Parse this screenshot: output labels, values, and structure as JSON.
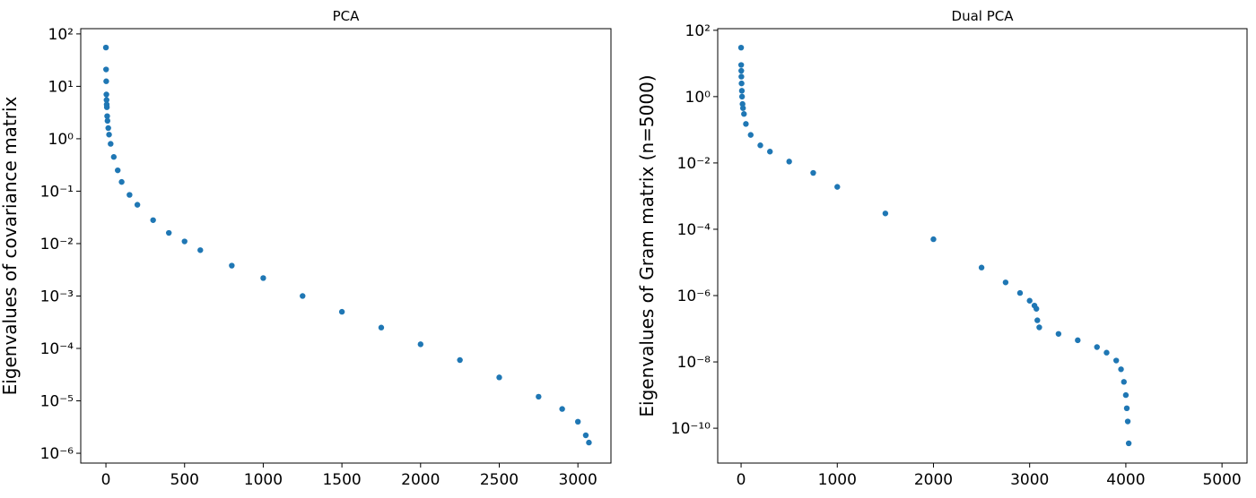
{
  "chart_data": [
    {
      "type": "scatter",
      "title": "PCA",
      "y_label": "Eigenvalues of covariance matrix",
      "yscale": "log",
      "color": "#1f77b4",
      "xlim": [
        -160,
        3210
      ],
      "ylim": [
        126,
        6.5e-07
      ],
      "xticks": [
        0,
        500,
        1000,
        1500,
        2000,
        2500,
        3000
      ],
      "yticks": [
        {
          "value": 100,
          "label": "10²"
        },
        {
          "value": 10,
          "label": "10¹"
        },
        {
          "value": 1,
          "label": "10⁰"
        },
        {
          "value": 0.1,
          "label": "10⁻¹"
        },
        {
          "value": 0.01,
          "label": "10⁻²"
        },
        {
          "value": 0.001,
          "label": "10⁻³"
        },
        {
          "value": 0.0001,
          "label": "10⁻⁴"
        },
        {
          "value": 1e-05,
          "label": "10⁻⁵"
        },
        {
          "value": 1e-06,
          "label": "10⁻⁶"
        }
      ],
      "x": [
        0,
        1,
        2,
        3,
        4,
        5,
        6,
        8,
        10,
        15,
        20,
        30,
        50,
        75,
        100,
        150,
        200,
        300,
        400,
        500,
        600,
        800,
        1000,
        1250,
        1500,
        1750,
        2000,
        2250,
        2500,
        2750,
        2900,
        3000,
        3050,
        3070
      ],
      "values": [
        55,
        21,
        12.5,
        7,
        5.5,
        4.5,
        4,
        2.7,
        2.2,
        1.6,
        1.2,
        0.8,
        0.45,
        0.25,
        0.15,
        0.085,
        0.055,
        0.028,
        0.016,
        0.011,
        0.0075,
        0.0038,
        0.0022,
        0.001,
        0.0005,
        0.00025,
        0.00012,
        6e-05,
        2.8e-05,
        1.2e-05,
        7e-06,
        4e-06,
        2.2e-06,
        1.6e-06
      ]
    },
    {
      "type": "scatter",
      "title": "Dual PCA",
      "y_label": "Eigenvalues of Gram matrix (n=5000)",
      "yscale": "log",
      "color": "#1f77b4",
      "xlim": [
        -243,
        5260
      ],
      "ylim": [
        112,
        8.9e-12
      ],
      "xticks": [
        0,
        1000,
        2000,
        3000,
        4000,
        5000
      ],
      "yticks": [
        {
          "value": 100,
          "label": "10²"
        },
        {
          "value": 1,
          "label": "10⁰"
        },
        {
          "value": 0.01,
          "label": "10⁻²"
        },
        {
          "value": 0.0001,
          "label": "10⁻⁴"
        },
        {
          "value": 1e-06,
          "label": "10⁻⁶"
        },
        {
          "value": 1e-08,
          "label": "10⁻⁸"
        },
        {
          "value": 1e-10,
          "label": "10⁻¹⁰"
        }
      ],
      "x": [
        0,
        1,
        2,
        3,
        5,
        8,
        10,
        15,
        20,
        30,
        50,
        100,
        200,
        300,
        500,
        750,
        1000,
        1500,
        2000,
        2500,
        2750,
        2900,
        3000,
        3050,
        3070,
        3080,
        3100,
        3300,
        3500,
        3700,
        3800,
        3900,
        3950,
        3980,
        4000,
        4010,
        4020,
        4030
      ],
      "values": [
        30,
        9,
        6,
        4,
        2.5,
        1.5,
        1,
        0.6,
        0.45,
        0.3,
        0.15,
        0.07,
        0.034,
        0.022,
        0.011,
        0.005,
        0.0019,
        0.0003,
        5e-05,
        7e-06,
        2.5e-06,
        1.2e-06,
        7e-07,
        5e-07,
        4e-07,
        1.8e-07,
        1.1e-07,
        7e-08,
        4.5e-08,
        2.8e-08,
        1.9e-08,
        1.1e-08,
        6e-09,
        2.5e-09,
        1e-09,
        4e-10,
        1.6e-10,
        3.5e-11
      ]
    }
  ]
}
